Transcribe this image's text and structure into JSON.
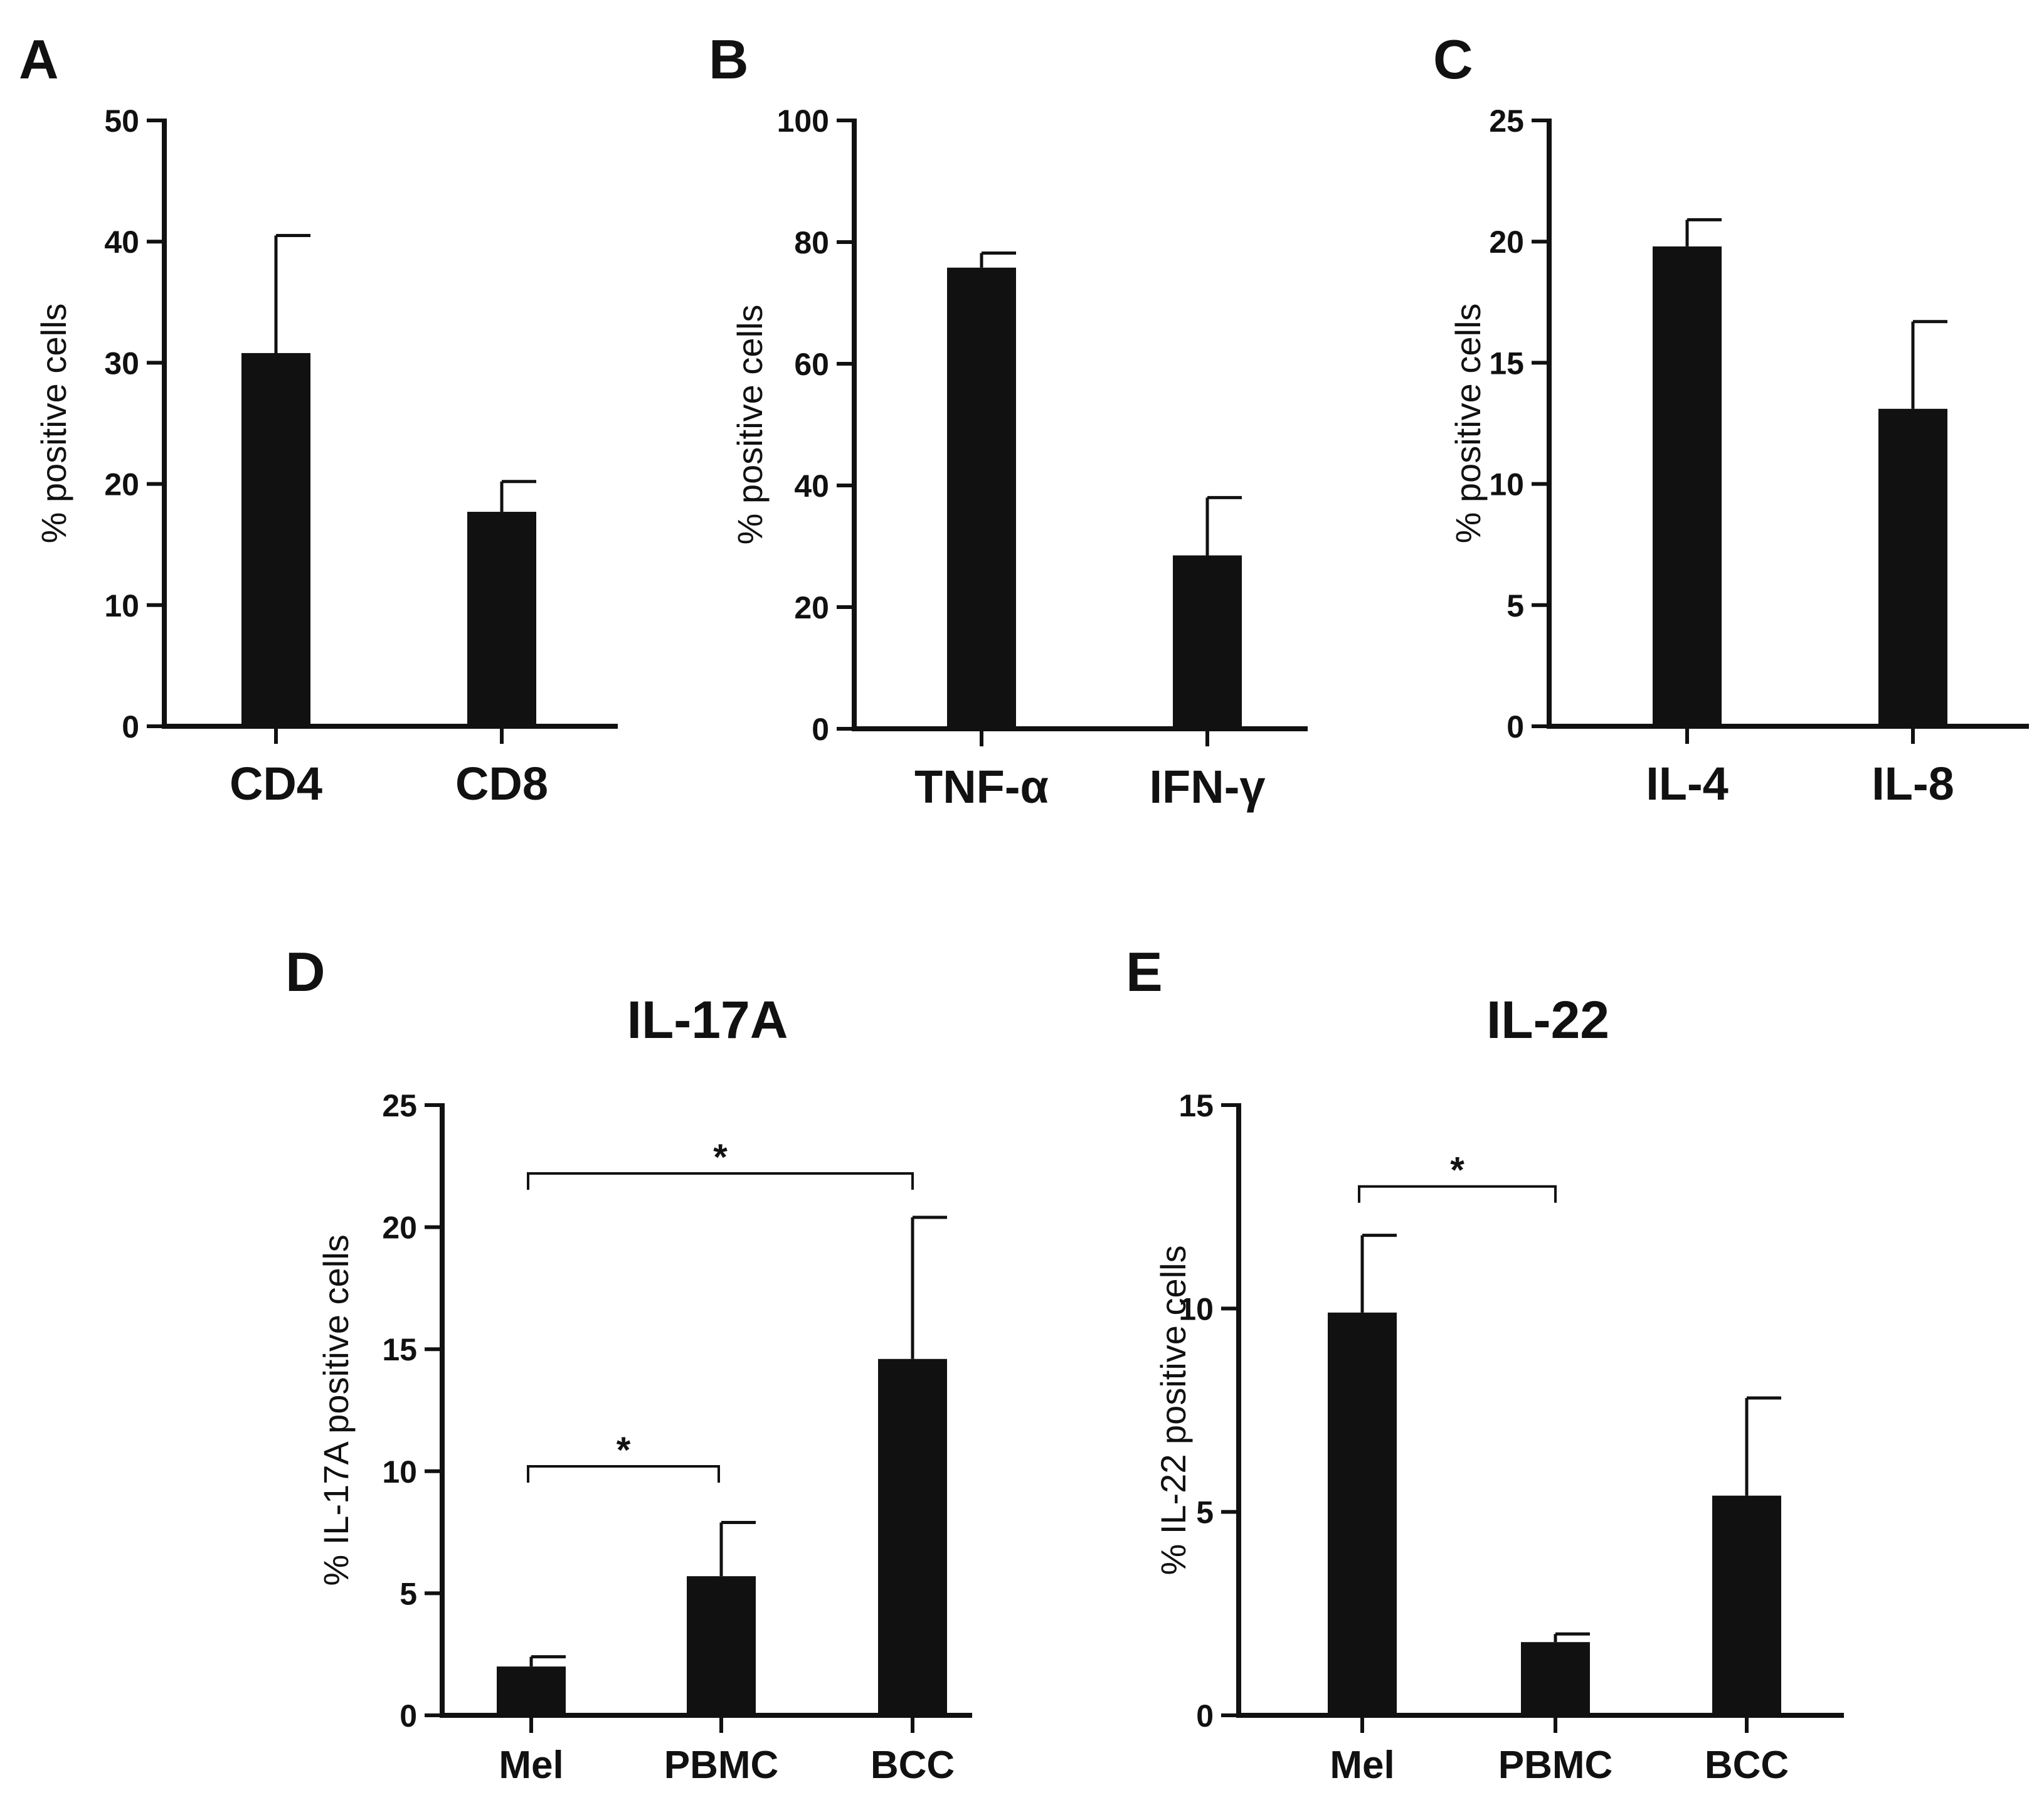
{
  "chart_data": [
    {
      "panel": "A",
      "type": "bar",
      "title": "",
      "ylabel": "% positive cells",
      "xlabel": "",
      "ylim": [
        0,
        50
      ],
      "yticks": [
        0,
        10,
        20,
        30,
        40,
        50
      ],
      "categories": [
        "CD4",
        "CD8"
      ],
      "values": [
        30.8,
        17.7
      ],
      "errors": [
        9.7,
        2.5
      ],
      "significance": []
    },
    {
      "panel": "B",
      "type": "bar",
      "title": "",
      "ylabel": "% positive cells",
      "xlabel": "",
      "ylim": [
        0,
        100
      ],
      "yticks": [
        0,
        20,
        40,
        60,
        80,
        100
      ],
      "categories": [
        "TNF-α",
        "IFN-γ"
      ],
      "values": [
        75.8,
        28.5
      ],
      "errors": [
        2.4,
        9.5
      ],
      "significance": []
    },
    {
      "panel": "C",
      "type": "bar",
      "title": "",
      "ylabel": "% positive cells",
      "xlabel": "",
      "ylim": [
        0,
        25
      ],
      "yticks": [
        0,
        5,
        10,
        15,
        20,
        25
      ],
      "categories": [
        "IL-4",
        "IL-8"
      ],
      "values": [
        19.8,
        13.1
      ],
      "errors": [
        1.1,
        3.6
      ],
      "significance": []
    },
    {
      "panel": "D",
      "type": "bar",
      "title": "IL-17A",
      "ylabel": "% IL-17A positive cells",
      "xlabel": "",
      "ylim": [
        0,
        25
      ],
      "yticks": [
        0,
        5,
        10,
        15,
        20,
        25
      ],
      "categories": [
        "Mel",
        "PBMC",
        "BCC"
      ],
      "values": [
        2.0,
        5.7,
        14.6
      ],
      "errors": [
        0.4,
        2.2,
        5.8
      ],
      "significance": [
        {
          "from": 0,
          "to": 2,
          "y": 22.2,
          "label": "*"
        },
        {
          "from": 0,
          "to": 1,
          "y": 10.2,
          "label": "*"
        }
      ]
    },
    {
      "panel": "E",
      "type": "bar",
      "title": "IL-22",
      "ylabel": "% IL-22 positive cells",
      "xlabel": "",
      "ylim": [
        0,
        15
      ],
      "yticks": [
        0,
        5,
        10,
        15
      ],
      "categories": [
        "Mel",
        "PBMC",
        "BCC"
      ],
      "values": [
        9.9,
        1.8,
        5.4
      ],
      "errors": [
        1.9,
        0.2,
        2.4
      ],
      "significance": [
        {
          "from": 0,
          "to": 1,
          "y": 13.0,
          "label": "*"
        }
      ]
    }
  ]
}
